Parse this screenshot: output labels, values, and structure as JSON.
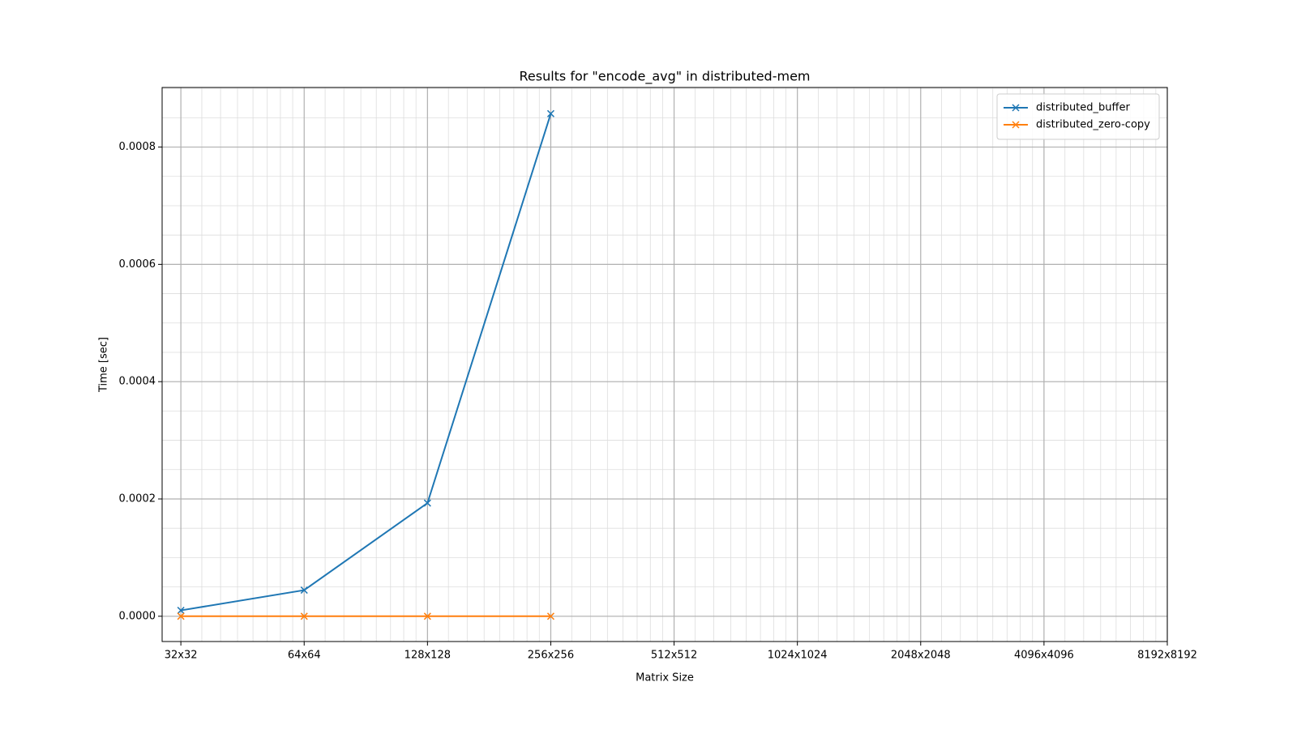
{
  "chart_data": {
    "type": "line",
    "title": "Results for   \"encode_avg\"   in   distributed-mem",
    "x_label": "Matrix Size",
    "y_label": "Time [sec]",
    "x": [
      32,
      64,
      128,
      256
    ],
    "series": [
      {
        "name": "distributed_buffer",
        "color": "#1f77b4",
        "values": [
          1e-05,
          4.45e-05,
          0.000193,
          0.000857
        ]
      },
      {
        "name": "distributed_zero-copy",
        "color": "#ff7f0e",
        "values": [
          0,
          0,
          0,
          0
        ]
      }
    ],
    "xscale": "log2",
    "xlim": [
      28.8,
      8192
    ],
    "xticks": [
      {
        "value": 32,
        "label": "32x32"
      },
      {
        "value": 64,
        "label": "64x64"
      },
      {
        "value": 128,
        "label": "128x128"
      },
      {
        "value": 256,
        "label": "256x256"
      },
      {
        "value": 512,
        "label": "512x512"
      },
      {
        "value": 1024,
        "label": "1024x1024"
      },
      {
        "value": 2048,
        "label": "2048x2048"
      },
      {
        "value": 4096,
        "label": "4096x4096"
      },
      {
        "value": 8192,
        "label": "8192x8192"
      }
    ],
    "ylim": [
      -4.31e-05,
      0.0009016
    ],
    "yticks": [
      {
        "value": 0,
        "label": "0.0000"
      },
      {
        "value": 0.0002,
        "label": "0.0002"
      },
      {
        "value": 0.0004,
        "label": "0.0004"
      },
      {
        "value": 0.0006,
        "label": "0.0006"
      },
      {
        "value": 0.0008,
        "label": "0.0008"
      }
    ],
    "grid": true,
    "legend": "upper right",
    "marker": "x"
  }
}
